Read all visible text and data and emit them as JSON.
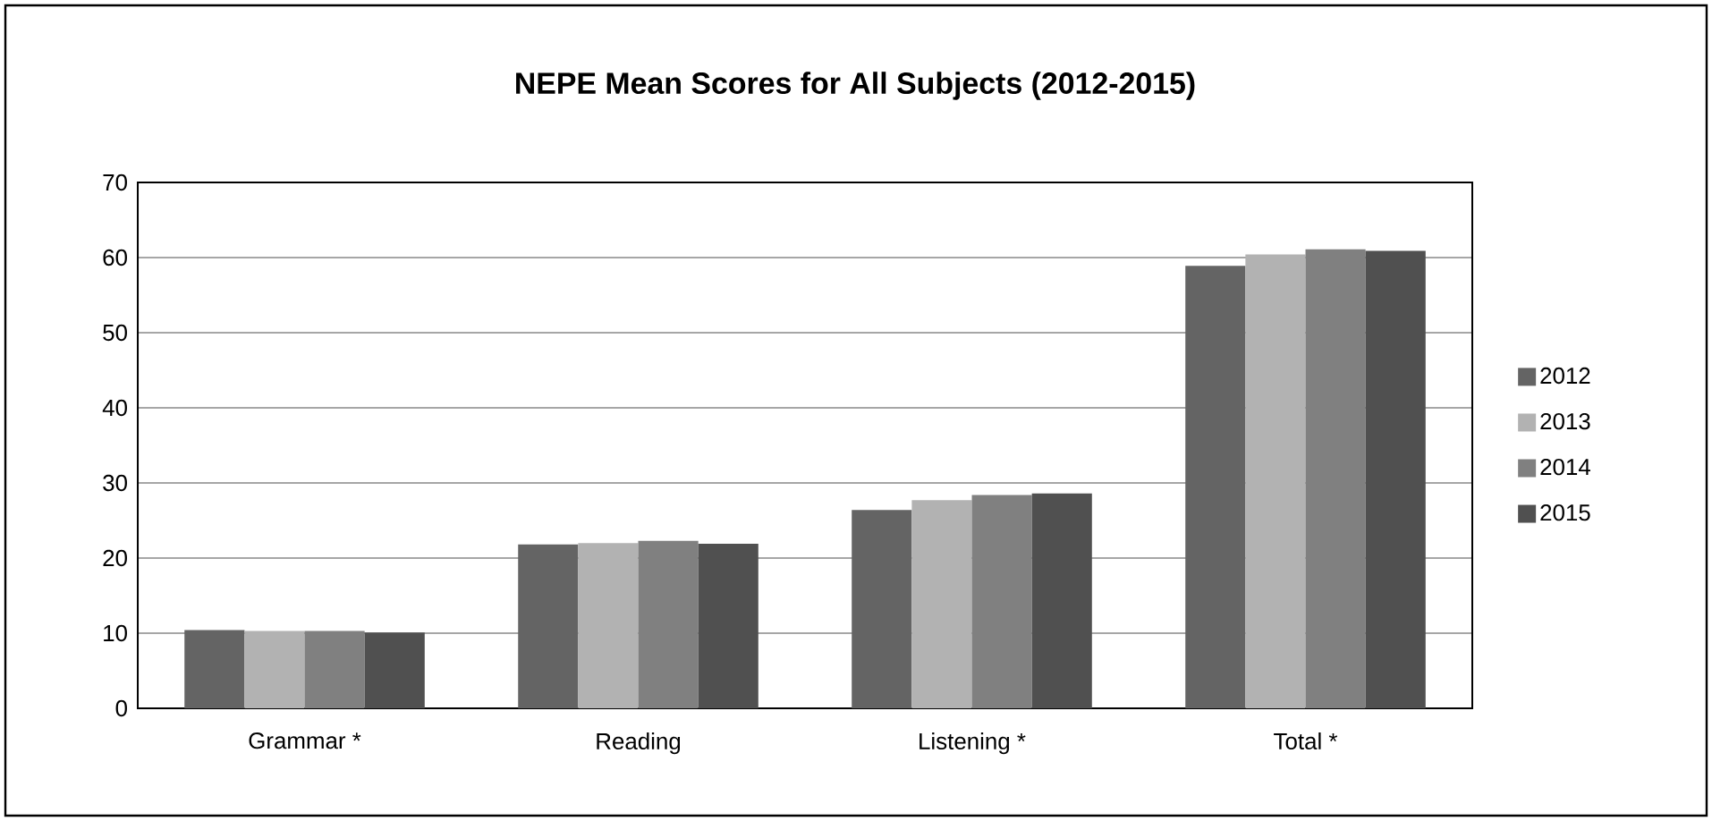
{
  "chart_data": {
    "type": "bar",
    "title": "NEPE Mean Scores for All Subjects (2012-2015)",
    "categories": [
      "Grammar *",
      "Reading",
      "Listening *",
      "Total *"
    ],
    "series": [
      {
        "name": "2012",
        "color": "#646464",
        "values": [
          10.4,
          21.8,
          26.4,
          58.9
        ]
      },
      {
        "name": "2013",
        "color": "#b2b2b2",
        "values": [
          10.3,
          22.0,
          27.7,
          60.4
        ]
      },
      {
        "name": "2014",
        "color": "#808080",
        "values": [
          10.3,
          22.3,
          28.4,
          61.1
        ]
      },
      {
        "name": "2015",
        "color": "#505050",
        "values": [
          10.1,
          21.9,
          28.6,
          60.9
        ]
      }
    ],
    "ylim": [
      0,
      70
    ],
    "yticks": [
      0,
      10,
      20,
      30,
      40,
      50,
      60,
      70
    ],
    "grid": "y",
    "legend": "right"
  }
}
